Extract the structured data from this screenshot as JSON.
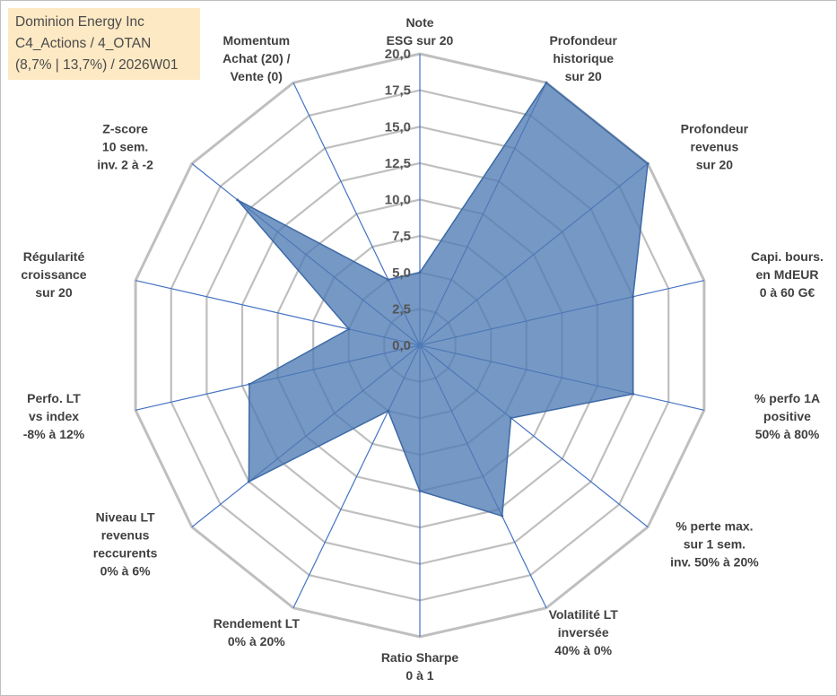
{
  "title_box": {
    "lines": [
      "Dominion Energy Inc",
      "C4_Actions / 4_OTAN",
      "(8,7% | 13,7%) / 2026W01"
    ]
  },
  "colors": {
    "grid": "#bfbfbf",
    "spoke": "#4472c4",
    "fill": "#4f7bb4",
    "stroke": "#3d6aa6",
    "title_bg": "#fde9c4"
  },
  "chart_data": {
    "type": "radar",
    "range": [
      0,
      20
    ],
    "tick_step": 2.5,
    "tick_labels": [
      "0,0",
      "2,5",
      "5,0",
      "7,5",
      "10,0",
      "12,5",
      "15,0",
      "17,5",
      "20,0"
    ],
    "axes": [
      {
        "label": [
          "Note",
          "ESG sur 20"
        ],
        "value": 5
      },
      {
        "label": [
          "Profondeur",
          "historique",
          "sur 20"
        ],
        "value": 20
      },
      {
        "label": [
          "Profondeur",
          "revenus",
          "sur 20"
        ],
        "value": 20
      },
      {
        "label": [
          "Capi. bours.",
          "en MdEUR",
          "0 à 60 G€"
        ],
        "value": 15
      },
      {
        "label": [
          "% perfo 1A",
          "positive",
          "50% à 80%"
        ],
        "value": 15
      },
      {
        "label": [
          "% perte max.",
          "sur 1 sem.",
          "inv. 50% à 20%"
        ],
        "value": 8
      },
      {
        "label": [
          "Volatilité LT",
          "inversée",
          "40% à 0%"
        ],
        "value": 13
      },
      {
        "label": [
          "Ratio Sharpe",
          "0 à 1"
        ],
        "value": 10
      },
      {
        "label": [
          "Rendement LT",
          "0% à 20%"
        ],
        "value": 5
      },
      {
        "label": [
          "Niveau LT",
          "revenus",
          "reccurents",
          "0% à 6%"
        ],
        "value": 15
      },
      {
        "label": [
          "Perfo. LT",
          "vs index",
          "-8% à 12%"
        ],
        "value": 12
      },
      {
        "label": [
          "Régularité",
          "croissance",
          "sur 20"
        ],
        "value": 5
      },
      {
        "label": [
          "Z-score",
          "10 sem.",
          "inv. 2 à -2"
        ],
        "value": 16
      },
      {
        "label": [
          "Momentum",
          "Achat (20) /",
          "Vente (0)"
        ],
        "value": 5
      }
    ]
  }
}
